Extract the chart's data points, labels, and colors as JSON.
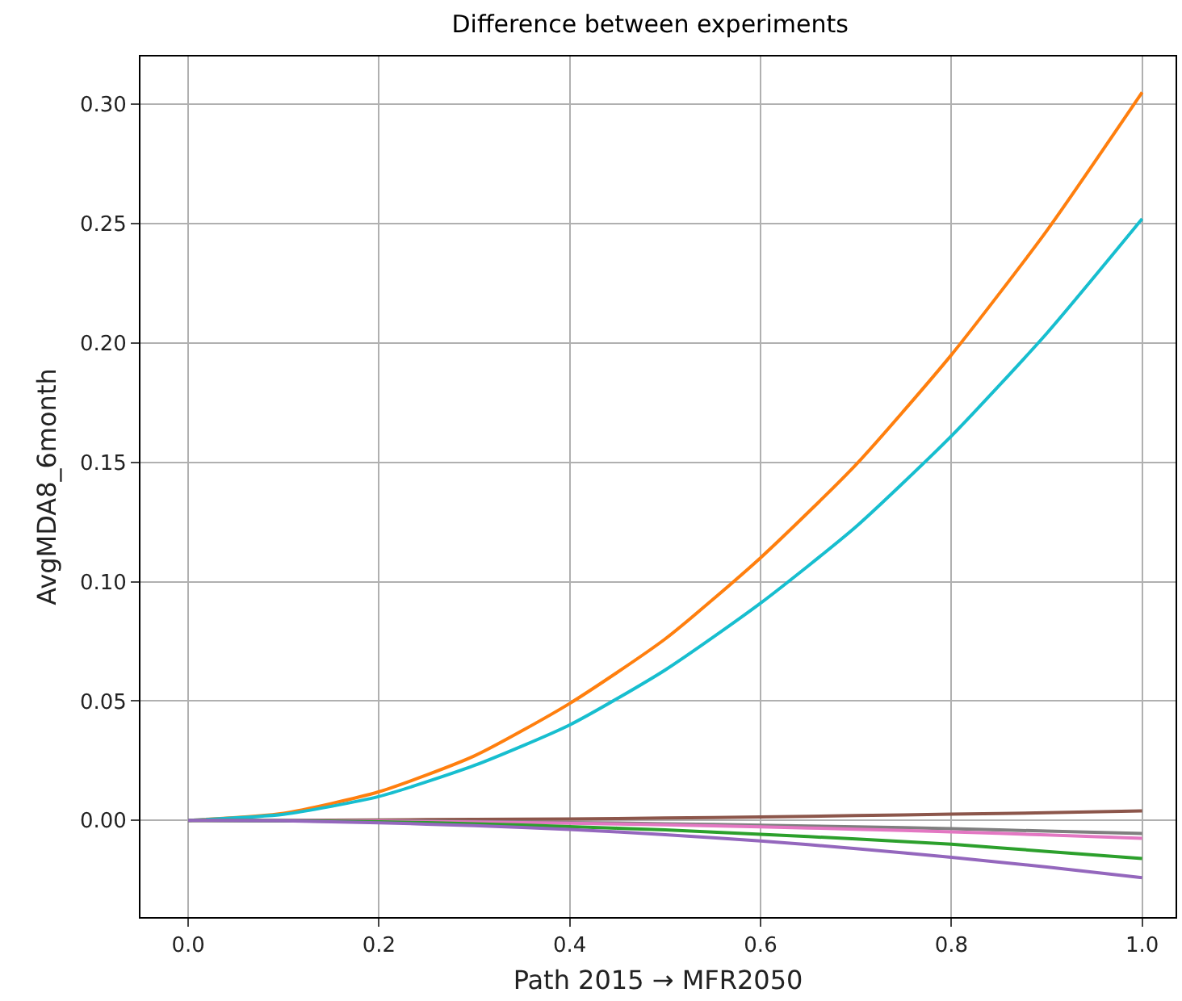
{
  "chart_data": {
    "type": "line",
    "title": "Difference between experiments",
    "xlabel": "Path 2015 → MFR2050",
    "ylabel": "AvgMDA8_6month",
    "x": [
      0,
      0.1,
      0.2,
      0.3,
      0.4,
      0.5,
      0.6,
      0.7,
      0.8,
      0.9,
      1.0
    ],
    "series": [
      {
        "color": "#ff7f0e",
        "values": [
          0,
          0.003,
          0.012,
          0.027,
          0.049,
          0.076,
          0.11,
          0.149,
          0.195,
          0.247,
          0.305
        ]
      },
      {
        "color": "#17becf",
        "values": [
          0,
          0.0025,
          0.01,
          0.023,
          0.04,
          0.063,
          0.091,
          0.123,
          0.161,
          0.204,
          0.252
        ]
      },
      {
        "color": "#8c564b",
        "values": [
          0,
          0,
          0.0002,
          0.0004,
          0.0006,
          0.001,
          0.0014,
          0.002,
          0.0026,
          0.0032,
          0.004
        ]
      },
      {
        "color": "#7f7f7f",
        "values": [
          0,
          -0.0001,
          -0.0002,
          -0.0005,
          -0.0009,
          -0.0014,
          -0.002,
          -0.0027,
          -0.0035,
          -0.0045,
          -0.0055
        ]
      },
      {
        "color": "#e377c2",
        "values": [
          0,
          -0.0001,
          -0.0003,
          -0.0007,
          -0.0012,
          -0.0019,
          -0.0027,
          -0.0037,
          -0.0048,
          -0.0061,
          -0.0075
        ]
      },
      {
        "color": "#2ca02c",
        "values": [
          0,
          -0.0002,
          -0.0006,
          -0.0014,
          -0.0026,
          -0.004,
          -0.0058,
          -0.0078,
          -0.01,
          -0.013,
          -0.016
        ]
      },
      {
        "color": "#9467bd",
        "values": [
          0,
          -0.0002,
          -0.001,
          -0.0022,
          -0.0038,
          -0.006,
          -0.0086,
          -0.0118,
          -0.0155,
          -0.0195,
          -0.024
        ]
      }
    ],
    "xlim": [
      -0.05,
      1.035
    ],
    "xticks": [
      {
        "value": 0,
        "label": "0.0"
      },
      0.2,
      0.4,
      0.6,
      0.8,
      {
        "value": 1,
        "label": "1.0"
      }
    ],
    "ylim": [
      -0.0405,
      0.32
    ],
    "yticks": [
      {
        "value": 0,
        "label": "0.00"
      },
      0.05,
      {
        "value": 0.1,
        "label": "0.10"
      },
      0.15,
      {
        "value": 0.2,
        "label": "0.20"
      },
      0.25,
      {
        "value": 0.3,
        "label": "0.30"
      }
    ],
    "grid": true,
    "marker": "none",
    "line_style": "solid"
  }
}
